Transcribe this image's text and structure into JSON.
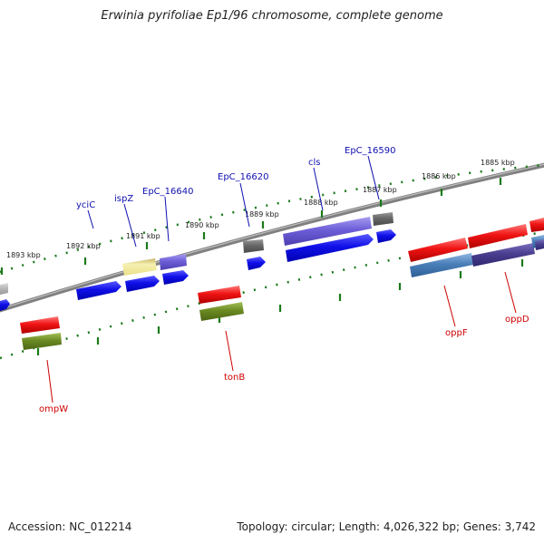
{
  "title": "Erwinia pyrifoliae Ep1/96 chromosome, complete genome",
  "footer": {
    "accession": "Accession: NC_012214",
    "summary": "Topology: circular; Length: 4,026,322 bp; Genes: 3,742"
  },
  "colors": {
    "backbone": "#808080",
    "tick": "#1a7a1a",
    "label_top_strand": "#1010b0",
    "label_bottom_strand": "#cc0000",
    "blue": "#0b0bdd",
    "purple": "#6655cc",
    "gray": "#666666",
    "light_gray": "#b5b5b5",
    "yellow": "#ede79a",
    "red": "#ee1111",
    "olive": "#6b8a22",
    "steel_blue": "#4a7fb8",
    "dark_slate": "#4a3f8f"
  },
  "tick_labels": [
    "1893 kbp",
    "1892 kbp",
    "1891 kbp",
    "1890 kbp",
    "1889 kbp",
    "1888 kbp",
    "1887 kbp",
    "1886 kbp",
    "1885 kbp"
  ],
  "genes": [
    {
      "label": "yciC",
      "strand": "top",
      "color": "blue"
    },
    {
      "label": "ispZ",
      "strand": "top",
      "color": "blue"
    },
    {
      "label": "EpC_16640",
      "strand": "top",
      "color": "blue"
    },
    {
      "label": "EpC_16620",
      "strand": "top",
      "color": "blue"
    },
    {
      "label": "cls",
      "strand": "top",
      "color": "blue"
    },
    {
      "label": "EpC_16590",
      "strand": "top",
      "color": "blue"
    },
    {
      "label": "ompW",
      "strand": "bottom",
      "color": "red"
    },
    {
      "label": "tonB",
      "strand": "bottom",
      "color": "red"
    },
    {
      "label": "oppF",
      "strand": "bottom",
      "color": "red"
    },
    {
      "label": "oppD",
      "strand": "bottom",
      "color": "red"
    }
  ]
}
